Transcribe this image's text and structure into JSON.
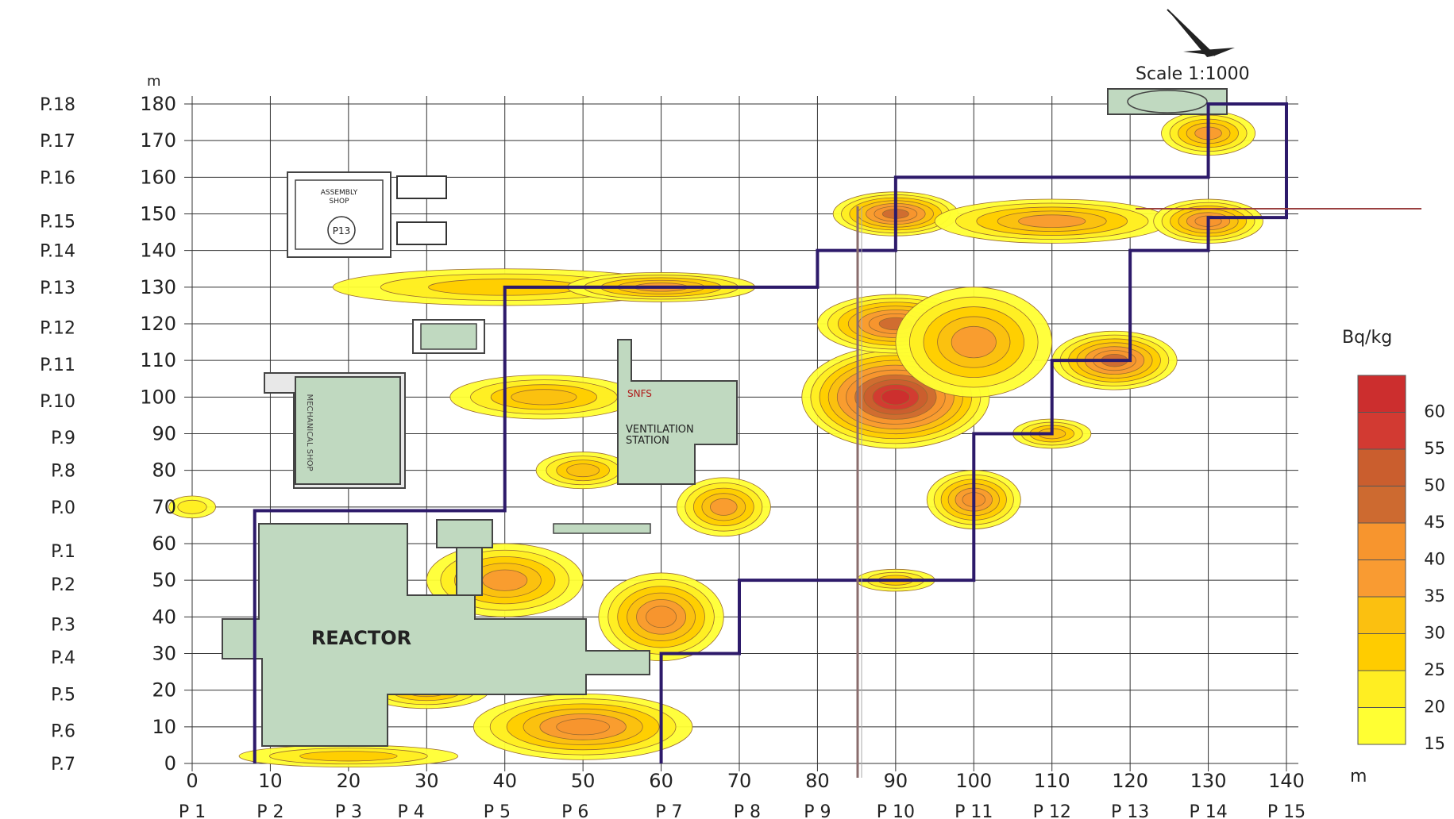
{
  "header": {
    "scale_text": "Scale 1:1000",
    "unit_y": "m",
    "unit_x": "m"
  },
  "axis": {
    "x_ticks": [
      "0",
      "10",
      "20",
      "30",
      "40",
      "50",
      "60",
      "70",
      "80",
      "90",
      "100",
      "110",
      "120",
      "130",
      "140"
    ],
    "y_ticks": [
      "0",
      "10",
      "20",
      "30",
      "40",
      "50",
      "60",
      "70",
      "80",
      "90",
      "100",
      "110",
      "120",
      "130",
      "140",
      "150",
      "160",
      "170",
      "180"
    ],
    "x_range_m": [
      0,
      140
    ],
    "y_range_m": [
      0,
      180
    ]
  },
  "row_labels": [
    {
      "label": "P.18",
      "y_m": 180
    },
    {
      "label": "P.17",
      "y_m": 170
    },
    {
      "label": "P.16",
      "y_m": 160
    },
    {
      "label": "P.15",
      "y_m": 148
    },
    {
      "label": "P.14",
      "y_m": 140
    },
    {
      "label": "P.13",
      "y_m": 130
    },
    {
      "label": "P.12",
      "y_m": 119
    },
    {
      "label": "P.11",
      "y_m": 109
    },
    {
      "label": "P.10",
      "y_m": 99
    },
    {
      "label": "P.9",
      "y_m": 89
    },
    {
      "label": "P.8",
      "y_m": 80
    },
    {
      "label": "P.0",
      "y_m": 70
    },
    {
      "label": "P.1",
      "y_m": 58
    },
    {
      "label": "P.2",
      "y_m": 49
    },
    {
      "label": "P.3",
      "y_m": 38
    },
    {
      "label": "P.4",
      "y_m": 29
    },
    {
      "label": "P.5",
      "y_m": 19
    },
    {
      "label": "P.6",
      "y_m": 9
    },
    {
      "label": "P.7",
      "y_m": 0
    }
  ],
  "col_labels": [
    {
      "label": "P 1",
      "x_m": 0
    },
    {
      "label": "P 2",
      "x_m": 10
    },
    {
      "label": "P 3",
      "x_m": 20
    },
    {
      "label": "P 4",
      "x_m": 28
    },
    {
      "label": "P 5",
      "x_m": 39
    },
    {
      "label": "P 6",
      "x_m": 49
    },
    {
      "label": "P 7",
      "x_m": 61
    },
    {
      "label": "P 8",
      "x_m": 71
    },
    {
      "label": "P 9",
      "x_m": 80
    },
    {
      "label": "P 10",
      "x_m": 90
    },
    {
      "label": "P 11",
      "x_m": 100
    },
    {
      "label": "P 12",
      "x_m": 110
    },
    {
      "label": "P 13",
      "x_m": 120
    },
    {
      "label": "P 14",
      "x_m": 130
    },
    {
      "label": "P 15",
      "x_m": 140
    }
  ],
  "buildings": {
    "reactor": "REACTOR",
    "ventilation_1": "SNFS",
    "ventilation_2": "VENTILATION",
    "ventilation_3": "STATION",
    "assembly_1": "ASSEMBLY",
    "assembly_2": "SHOP",
    "p13_tag": "P13",
    "left_shop": "MECHANICAL SHOP"
  },
  "legend": {
    "title": "Bq/kg",
    "bins": [
      {
        "value": 15,
        "color": "#ffff33"
      },
      {
        "value": 20,
        "color": "#ffee22"
      },
      {
        "value": 25,
        "color": "#ffcc00"
      },
      {
        "value": 30,
        "color": "#fbc010"
      },
      {
        "value": 35,
        "color": "#f99b32"
      },
      {
        "value": 40,
        "color": "#f7952e"
      },
      {
        "value": 45,
        "color": "#cd6a30"
      },
      {
        "value": 50,
        "color": "#ca5e2e"
      },
      {
        "value": 55,
        "color": "#d23a32"
      },
      {
        "value": 60,
        "color": "#cc2e2e"
      }
    ]
  },
  "contamination_hotspots": [
    {
      "x_m": 0,
      "y_m": 70,
      "rx_m": 3,
      "ry_m": 3,
      "peak_bin": 1
    },
    {
      "x_m": 40,
      "y_m": 130,
      "rx_m": 22,
      "ry_m": 5,
      "peak_bin": 2
    },
    {
      "x_m": 60,
      "y_m": 130,
      "rx_m": 12,
      "ry_m": 4,
      "peak_bin": 4
    },
    {
      "x_m": 45,
      "y_m": 100,
      "rx_m": 12,
      "ry_m": 6,
      "peak_bin": 3
    },
    {
      "x_m": 50,
      "y_m": 80,
      "rx_m": 6,
      "ry_m": 5,
      "peak_bin": 3
    },
    {
      "x_m": 40,
      "y_m": 50,
      "rx_m": 10,
      "ry_m": 10,
      "peak_bin": 4
    },
    {
      "x_m": 60,
      "y_m": 40,
      "rx_m": 8,
      "ry_m": 12,
      "peak_bin": 5
    },
    {
      "x_m": 68,
      "y_m": 70,
      "rx_m": 6,
      "ry_m": 8,
      "peak_bin": 4
    },
    {
      "x_m": 50,
      "y_m": 10,
      "rx_m": 14,
      "ry_m": 9,
      "peak_bin": 5
    },
    {
      "x_m": 30,
      "y_m": 20,
      "rx_m": 8,
      "ry_m": 5,
      "peak_bin": 3
    },
    {
      "x_m": 20,
      "y_m": 2,
      "rx_m": 14,
      "ry_m": 3,
      "peak_bin": 2
    },
    {
      "x_m": 90,
      "y_m": 100,
      "rx_m": 12,
      "ry_m": 14,
      "peak_bin": 9
    },
    {
      "x_m": 90,
      "y_m": 120,
      "rx_m": 10,
      "ry_m": 8,
      "peak_bin": 6
    },
    {
      "x_m": 100,
      "y_m": 115,
      "rx_m": 10,
      "ry_m": 15,
      "peak_bin": 4
    },
    {
      "x_m": 118,
      "y_m": 110,
      "rx_m": 8,
      "ry_m": 8,
      "peak_bin": 6
    },
    {
      "x_m": 90,
      "y_m": 150,
      "rx_m": 8,
      "ry_m": 6,
      "peak_bin": 6
    },
    {
      "x_m": 110,
      "y_m": 148,
      "rx_m": 15,
      "ry_m": 6,
      "peak_bin": 4
    },
    {
      "x_m": 130,
      "y_m": 148,
      "rx_m": 7,
      "ry_m": 6,
      "peak_bin": 5
    },
    {
      "x_m": 130,
      "y_m": 172,
      "rx_m": 6,
      "ry_m": 6,
      "peak_bin": 4
    },
    {
      "x_m": 100,
      "y_m": 72,
      "rx_m": 6,
      "ry_m": 8,
      "peak_bin": 5
    },
    {
      "x_m": 110,
      "y_m": 90,
      "rx_m": 5,
      "ry_m": 4,
      "peak_bin": 3
    },
    {
      "x_m": 90,
      "y_m": 50,
      "rx_m": 5,
      "ry_m": 3,
      "peak_bin": 2
    }
  ],
  "boundary_path_m": [
    [
      8,
      0
    ],
    [
      8,
      69
    ],
    [
      40,
      69
    ],
    [
      40,
      130
    ],
    [
      80,
      130
    ],
    [
      80,
      140
    ],
    [
      90,
      140
    ],
    [
      90,
      160
    ],
    [
      130,
      160
    ],
    [
      130,
      180
    ],
    [
      140,
      180
    ],
    [
      140,
      149
    ],
    [
      130,
      149
    ],
    [
      130,
      140
    ],
    [
      120,
      140
    ],
    [
      120,
      110
    ],
    [
      110,
      110
    ],
    [
      110,
      90
    ],
    [
      100,
      90
    ],
    [
      100,
      50
    ],
    [
      70,
      50
    ],
    [
      70,
      30
    ],
    [
      60,
      30
    ],
    [
      60,
      0
    ]
  ]
}
